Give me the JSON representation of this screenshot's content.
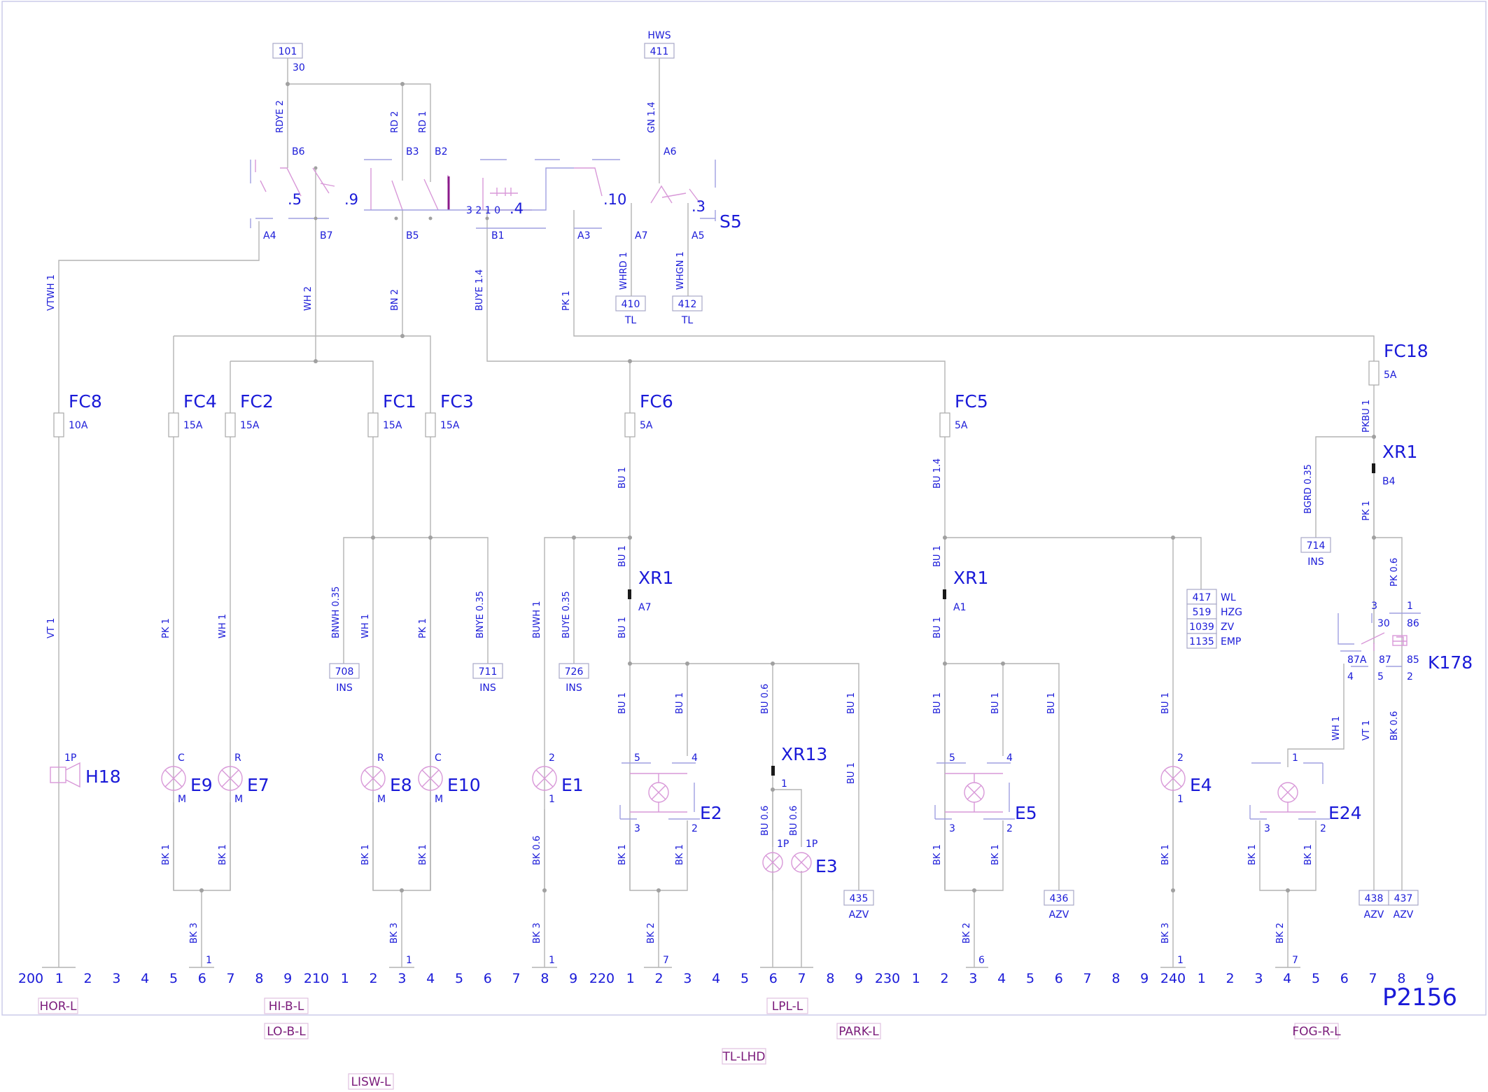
{
  "page_number": "P2156",
  "connectors_top": [
    {
      "id": "c101",
      "label": "101",
      "pin": "30"
    },
    {
      "id": "c411",
      "label": "411",
      "sup": "HWS"
    },
    {
      "id": "c410",
      "label": "410",
      "sub": "TL"
    },
    {
      "id": "c412",
      "label": "412",
      "sub": "TL"
    }
  ],
  "switch": {
    "name": "S5",
    "positions": [
      ".5",
      ".9",
      ".4",
      ".10",
      ".3"
    ],
    "detent": "3 2 1 0",
    "pins": [
      "B6",
      "B3",
      "B2",
      "A6",
      "A4",
      "B7",
      "B5",
      "B1",
      "A3",
      "A7",
      "A5"
    ]
  },
  "wires": [
    {
      "id": "w1",
      "label": "RDYE 2"
    },
    {
      "id": "w2",
      "label": "RD 2"
    },
    {
      "id": "w3",
      "label": "RD 1"
    },
    {
      "id": "w4",
      "label": "GN 1.4"
    },
    {
      "id": "w5",
      "label": "VTWH 1"
    },
    {
      "id": "w6",
      "label": "WH 2"
    },
    {
      "id": "w7",
      "label": "BN 2"
    },
    {
      "id": "w8",
      "label": "BUYE 1.4"
    },
    {
      "id": "w9",
      "label": "PK 1"
    },
    {
      "id": "w10",
      "label": "WHRD 1"
    },
    {
      "id": "w11",
      "label": "WHGN 1"
    },
    {
      "id": "w12",
      "label": "PKBU 1"
    },
    {
      "id": "w13",
      "label": "BGRD 0.35"
    },
    {
      "id": "w14",
      "label": "PK 1"
    },
    {
      "id": "w15",
      "label": "BU 1"
    },
    {
      "id": "w16",
      "label": "BU 1.4"
    },
    {
      "id": "w17",
      "label": "BU 1"
    },
    {
      "id": "w18",
      "label": "BU 1"
    },
    {
      "id": "w19",
      "label": "BU 1"
    },
    {
      "id": "w20",
      "label": "BU 1"
    },
    {
      "id": "w21",
      "label": "VT 1"
    },
    {
      "id": "w22",
      "label": "PK 1"
    },
    {
      "id": "w23",
      "label": "WH 1"
    },
    {
      "id": "w24",
      "label": "BNWH 0.35"
    },
    {
      "id": "w25",
      "label": "WH 1"
    },
    {
      "id": "w26",
      "label": "PK 1"
    },
    {
      "id": "w27",
      "label": "BNYE 0.35"
    },
    {
      "id": "w28",
      "label": "BUWH 1"
    },
    {
      "id": "w29",
      "label": "BUYE 0.35"
    },
    {
      "id": "w30",
      "label": "PK 0.6"
    },
    {
      "id": "w31",
      "label": "BU 1"
    },
    {
      "id": "w32",
      "label": "BU 1"
    },
    {
      "id": "w33",
      "label": "BU 0.6"
    },
    {
      "id": "w34",
      "label": "BU 1"
    },
    {
      "id": "w35",
      "label": "BU 1"
    },
    {
      "id": "w36",
      "label": "BU 1"
    },
    {
      "id": "w37",
      "label": "BU 1"
    },
    {
      "id": "w38",
      "label": "BU 1"
    },
    {
      "id": "w39",
      "label": "WH 1"
    },
    {
      "id": "w40",
      "label": "VT 1"
    },
    {
      "id": "w41",
      "label": "BK 0.6"
    },
    {
      "id": "w42",
      "label": "BU 0.6"
    },
    {
      "id": "w43",
      "label": "BU 0.6"
    },
    {
      "id": "w44",
      "label": "BK 1"
    },
    {
      "id": "w45",
      "label": "BK 1"
    },
    {
      "id": "w46",
      "label": "BK 1"
    },
    {
      "id": "w47",
      "label": "BK 1"
    },
    {
      "id": "w48",
      "label": "BK 0.6"
    },
    {
      "id": "w49",
      "label": "BK 1"
    },
    {
      "id": "w50",
      "label": "BK 1"
    },
    {
      "id": "w51",
      "label": "BK 1"
    },
    {
      "id": "w52",
      "label": "BK 1"
    },
    {
      "id": "w53",
      "label": "BK 1"
    },
    {
      "id": "w54",
      "label": "BK 1"
    },
    {
      "id": "w55",
      "label": "BK 1"
    },
    {
      "id": "w56",
      "label": "BK 3"
    },
    {
      "id": "w57",
      "label": "BK 3"
    },
    {
      "id": "w58",
      "label": "BK 3"
    },
    {
      "id": "w59",
      "label": "BK 2"
    },
    {
      "id": "w60",
      "label": "BK 2"
    },
    {
      "id": "w61",
      "label": "BK 3"
    },
    {
      "id": "w62",
      "label": "BK 2"
    },
    {
      "id": "w63",
      "label": "BU 1"
    }
  ],
  "fuses": [
    {
      "name": "FC8",
      "rating": "10A"
    },
    {
      "name": "FC4",
      "rating": "15A"
    },
    {
      "name": "FC2",
      "rating": "15A"
    },
    {
      "name": "FC1",
      "rating": "15A"
    },
    {
      "name": "FC3",
      "rating": "15A"
    },
    {
      "name": "FC6",
      "rating": "5A"
    },
    {
      "name": "FC5",
      "rating": "5A"
    },
    {
      "name": "FC18",
      "rating": "5A"
    }
  ],
  "connectors_inline": [
    {
      "id": "x1",
      "name": "XR1",
      "pin": "B4"
    },
    {
      "id": "x2",
      "name": "XR1",
      "pin": "A7"
    },
    {
      "id": "x3",
      "name": "XR1",
      "pin": "A1"
    },
    {
      "id": "x4",
      "name": "XR13",
      "pin": "1"
    }
  ],
  "terminals": [
    {
      "id": "t708",
      "label": "708",
      "sub": "INS"
    },
    {
      "id": "t711",
      "label": "711",
      "sub": "INS"
    },
    {
      "id": "t726",
      "label": "726",
      "sub": "INS"
    },
    {
      "id": "t714",
      "label": "714",
      "sub": "INS"
    },
    {
      "id": "t435",
      "label": "435",
      "sub": "AZV"
    },
    {
      "id": "t436",
      "label": "436",
      "sub": "AZV"
    },
    {
      "id": "t438",
      "label": "438",
      "sub": "AZV"
    },
    {
      "id": "t437",
      "label": "437",
      "sub": "AZV"
    }
  ],
  "stack_terms": [
    {
      "label": "417",
      "sub": "WL"
    },
    {
      "label": "519",
      "sub": "HZG"
    },
    {
      "label": "1039",
      "sub": "ZV"
    },
    {
      "label": "1135",
      "sub": "EMP"
    }
  ],
  "components": [
    {
      "id": "H18",
      "name": "H18",
      "pins": [
        "1P"
      ]
    },
    {
      "id": "E9",
      "name": "E9",
      "pins": [
        "C",
        "M"
      ]
    },
    {
      "id": "E7",
      "name": "E7",
      "pins": [
        "R",
        "M"
      ]
    },
    {
      "id": "E8",
      "name": "E8",
      "pins": [
        "R",
        "M"
      ]
    },
    {
      "id": "E10",
      "name": "E10",
      "pins": [
        "C",
        "M"
      ]
    },
    {
      "id": "E1",
      "name": "E1",
      "pins": [
        "2",
        "1"
      ]
    },
    {
      "id": "E2",
      "name": "E2",
      "pins": [
        "5",
        "4",
        "3",
        "2"
      ]
    },
    {
      "id": "E3",
      "name": "E3",
      "pins": [
        "1P",
        "1P"
      ]
    },
    {
      "id": "E5",
      "name": "E5",
      "pins": [
        "5",
        "4",
        "3",
        "2"
      ]
    },
    {
      "id": "E4",
      "name": "E4",
      "pins": [
        "2",
        "1"
      ]
    },
    {
      "id": "E24",
      "name": "E24",
      "pins": [
        "1",
        "3",
        "2"
      ]
    }
  ],
  "relay": {
    "name": "K178",
    "pins": [
      "3",
      "1",
      "30",
      "86",
      "87A",
      "87",
      "85",
      "4",
      "5",
      "2"
    ]
  },
  "ground_pins": [
    {
      "id": "g1",
      "label": "1"
    },
    {
      "id": "g2",
      "label": "1"
    },
    {
      "id": "g3",
      "label": "1"
    },
    {
      "id": "g4",
      "label": "7"
    },
    {
      "id": "g5",
      "label": "6"
    },
    {
      "id": "g6",
      "label": "1"
    },
    {
      "id": "g7",
      "label": "7"
    }
  ],
  "ruler": [
    "200",
    "1",
    "2",
    "3",
    "4",
    "5",
    "6",
    "7",
    "8",
    "9",
    "210",
    "1",
    "2",
    "3",
    "4",
    "5",
    "6",
    "7",
    "8",
    "9",
    "220",
    "1",
    "2",
    "3",
    "4",
    "5",
    "6",
    "7",
    "8",
    "9",
    "230",
    "1",
    "2",
    "3",
    "4",
    "5",
    "6",
    "7",
    "8",
    "9",
    "240",
    "1",
    "2",
    "3",
    "4",
    "5",
    "6",
    "7",
    "8",
    "9"
  ],
  "refs": [
    {
      "id": "r1",
      "label": "HOR-L"
    },
    {
      "id": "r2",
      "label": "HI-B-L"
    },
    {
      "id": "r3",
      "label": "LO-B-L"
    },
    {
      "id": "r4",
      "label": "LISW-L"
    },
    {
      "id": "r5",
      "label": "LPL-L"
    },
    {
      "id": "r6",
      "label": "TL-LHD"
    },
    {
      "id": "r7",
      "label": "PARK-L"
    },
    {
      "id": "r8",
      "label": "FOG-R-L"
    }
  ],
  "colors": {
    "text": "#1a1ad8",
    "wire": "#b4b4b4",
    "symbol": "#d898d8",
    "frame": "#c8c8e8",
    "ref": "#7a1a7a"
  }
}
